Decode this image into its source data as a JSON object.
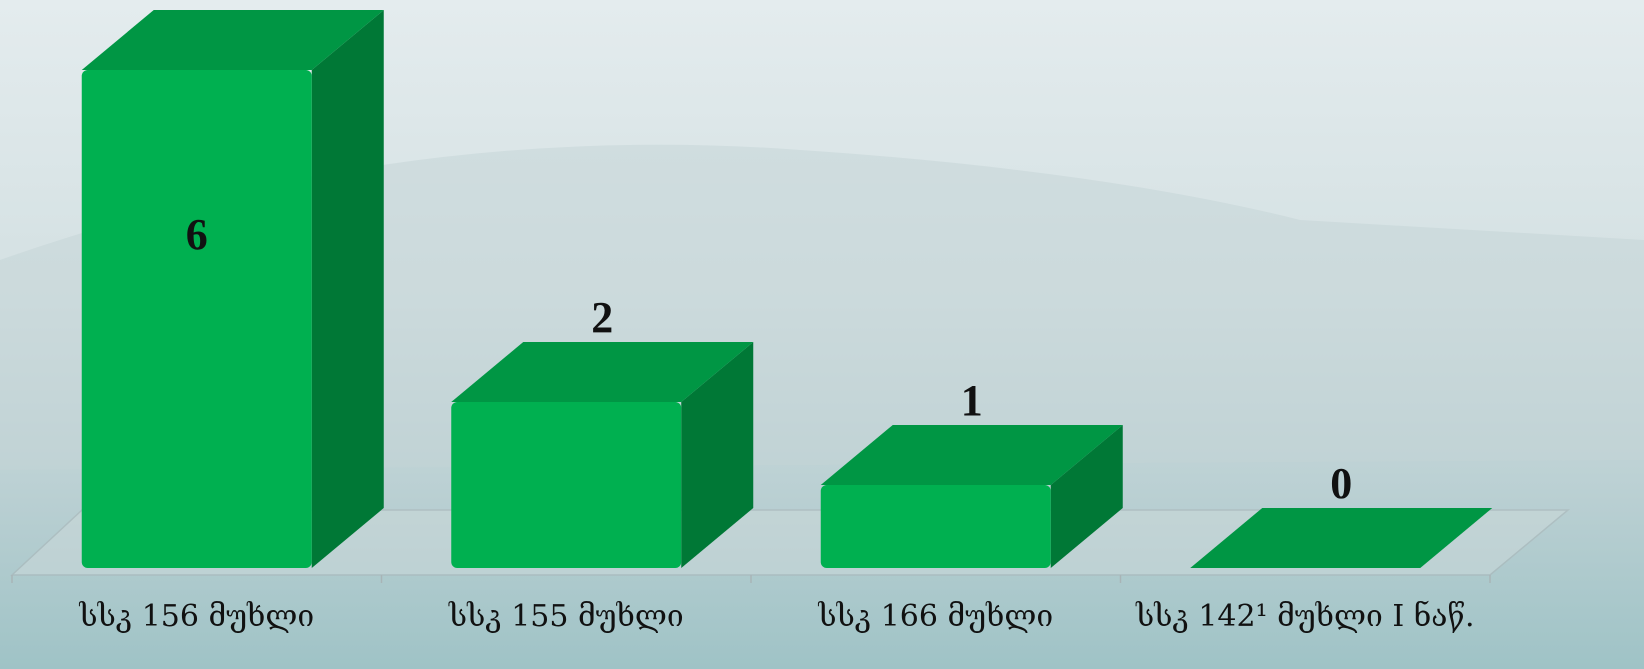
{
  "chart_data": {
    "type": "bar3d",
    "categories": [
      "სსკ 156 მუხლი",
      "სსკ 155 მუხლი",
      "სსკ 166 მუხლი",
      "სსკ 142¹ მუხლი I ნაწ."
    ],
    "values": [
      6,
      2,
      1,
      0
    ],
    "color": "#00b050"
  }
}
